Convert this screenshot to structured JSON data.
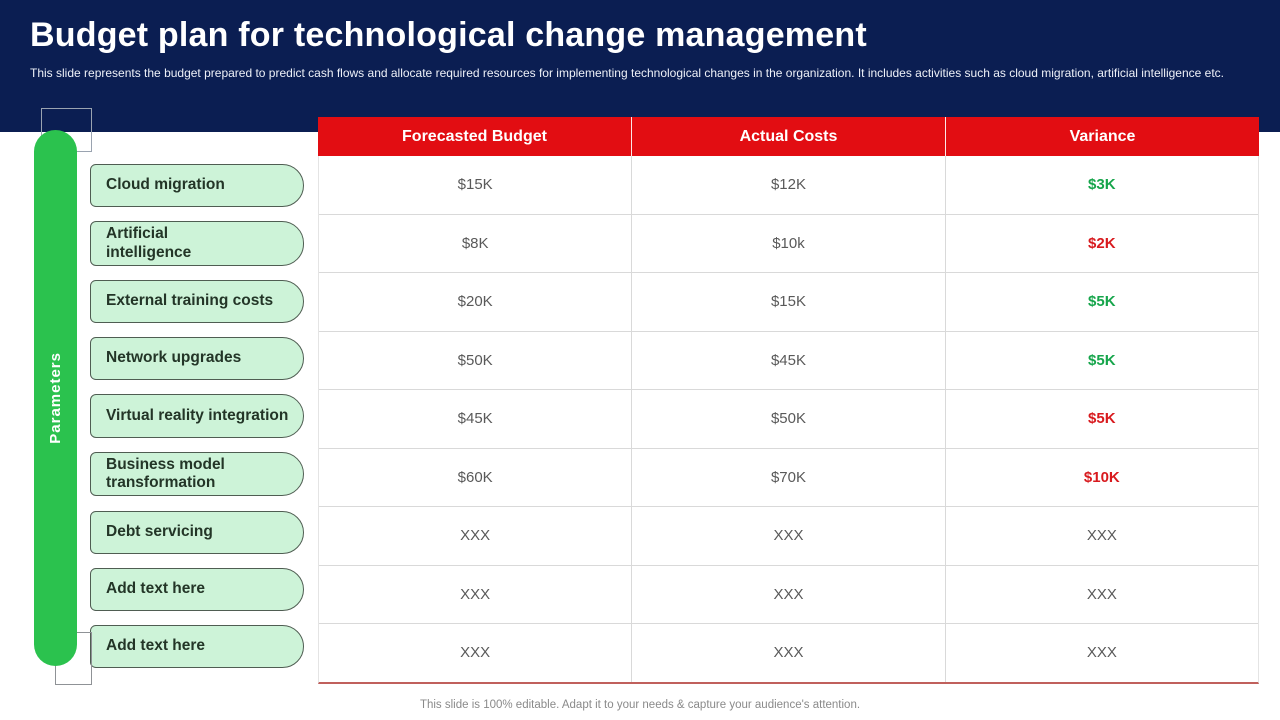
{
  "slide": {
    "title": "Budget plan for technological change management",
    "subtitle": "This slide represents the budget prepared to predict cash flows and allocate required resources for implementing technological changes in the organization. It includes activities such as cloud migration, artificial intelligence etc.",
    "footer": "This slide is 100% editable. Adapt it to your needs & capture your audience's attention."
  },
  "sidebar": {
    "label": "Parameters",
    "items": [
      {
        "label": "Cloud migration"
      },
      {
        "label": "Artificial\nintelligence"
      },
      {
        "label": "External training costs"
      },
      {
        "label": "Network upgrades"
      },
      {
        "label": "Virtual reality integration"
      },
      {
        "label": "Business model\ntransformation"
      },
      {
        "label": "Debt servicing"
      },
      {
        "label": "Add text here"
      },
      {
        "label": "Add text here"
      }
    ]
  },
  "table": {
    "headers": [
      "Forecasted Budget",
      "Actual Costs",
      "Variance"
    ],
    "rows": [
      {
        "cells": [
          "$15K",
          "$12K",
          "$3K"
        ],
        "variance_color": "green"
      },
      {
        "cells": [
          "$8K",
          "$10k",
          "$2K"
        ],
        "variance_color": "red"
      },
      {
        "cells": [
          "$20K",
          "$15K",
          "$5K"
        ],
        "variance_color": "green"
      },
      {
        "cells": [
          "$50K",
          "$45K",
          "$5K"
        ],
        "variance_color": "green"
      },
      {
        "cells": [
          "$45K",
          "$50K",
          "$5K"
        ],
        "variance_color": "red"
      },
      {
        "cells": [
          "$60K",
          "$70K",
          "$10K"
        ],
        "variance_color": "red"
      },
      {
        "cells": [
          "XXX",
          "XXX",
          "XXX"
        ],
        "variance_color": "gray"
      },
      {
        "cells": [
          "XXX",
          "XXX",
          "XXX"
        ],
        "variance_color": "gray"
      },
      {
        "cells": [
          "XXX",
          "XXX",
          "XXX"
        ],
        "variance_color": "gray"
      }
    ]
  },
  "colors": {
    "navy": "#0b1e52",
    "header_red": "#e20d12",
    "green_bar": "#2bc24e",
    "pill_fill": "#cdf3d8",
    "pill_border": "#4f5d52",
    "pill_text": "#233527",
    "variance_green": "#16a54b",
    "variance_red": "#d81a1e",
    "cell_text": "#595959",
    "row_border": "#d9d9d9",
    "table_bottom_border": "#c0605c",
    "subtitle_text": "#eef1f8",
    "footer_text": "#8a8a8a"
  }
}
